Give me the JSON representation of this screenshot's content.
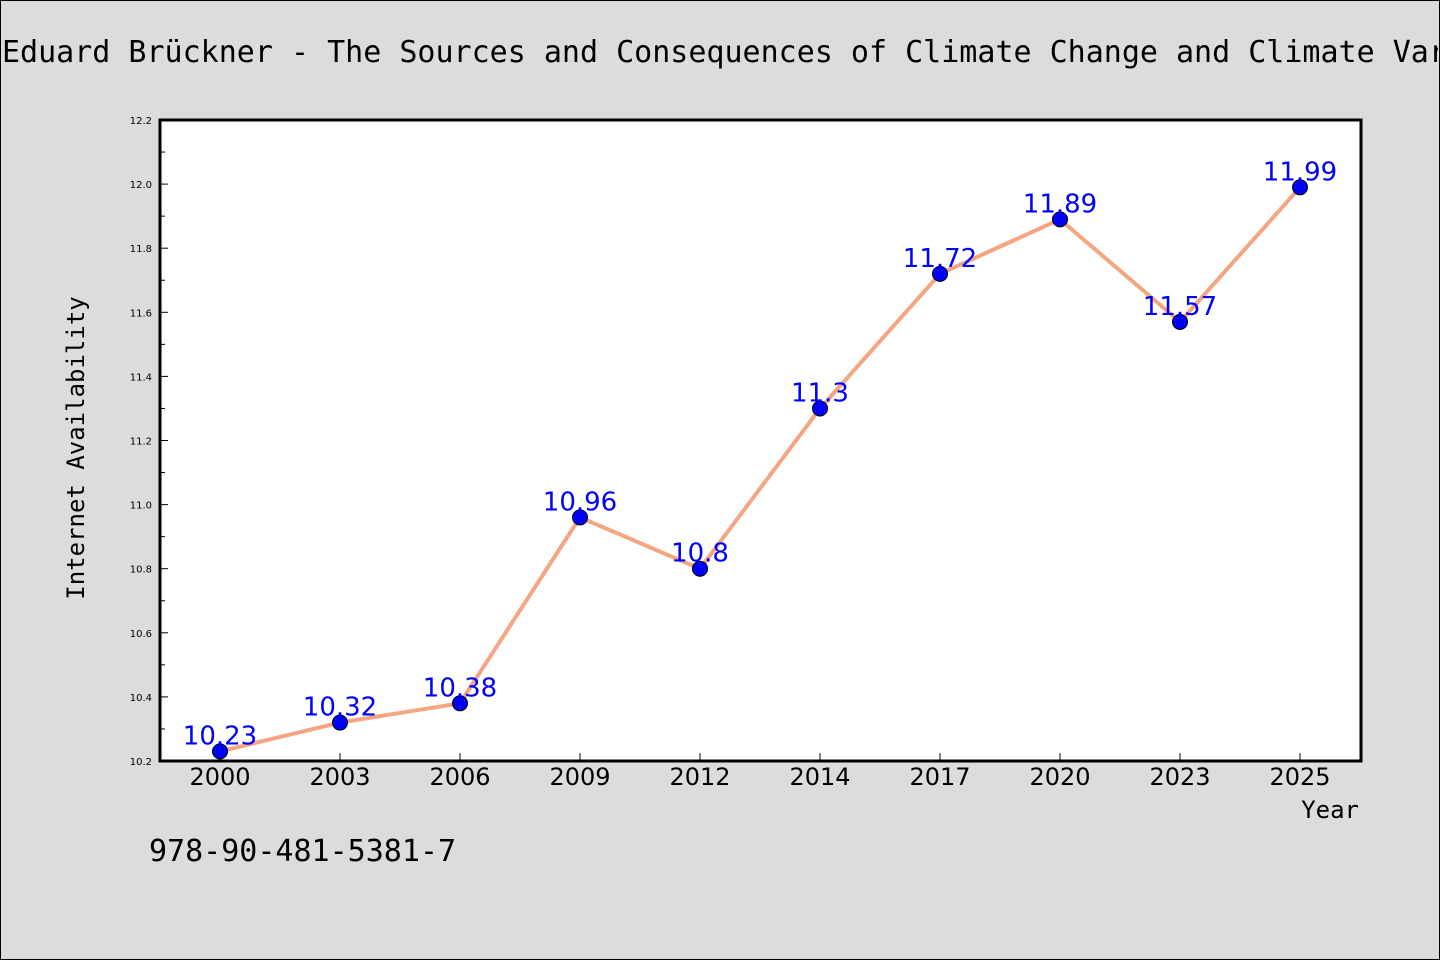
{
  "chart_data": {
    "type": "line",
    "title": "Eduard Brückner - The Sources and Consequences of Climate Change and Climate Variability in Historical Times",
    "xlabel": "Year",
    "ylabel": "Internet Availability",
    "categories": [
      "2000",
      "2003",
      "2006",
      "2009",
      "2012",
      "2014",
      "2017",
      "2020",
      "2023",
      "2025"
    ],
    "values": [
      10.23,
      10.32,
      10.38,
      10.96,
      10.8,
      11.3,
      11.72,
      11.89,
      11.57,
      11.99
    ],
    "data_labels": [
      "10.23",
      "10.32",
      "10.38",
      "10.96",
      "10.8",
      "11.3",
      "11.72",
      "11.89",
      "11.57",
      "11.99"
    ],
    "ylim": [
      10.2,
      12.2
    ],
    "yticks": [
      10.2,
      10.4,
      10.6,
      10.8,
      11.0,
      11.2,
      11.4,
      11.6,
      11.8,
      12.0,
      12.2
    ],
    "ytick_labels": [
      "10.2",
      "10.4",
      "10.6",
      "10.8",
      "11.0",
      "11.2",
      "11.4",
      "11.6",
      "11.8",
      "12.0",
      "12.2"
    ],
    "grid": false,
    "colors": {
      "line": "#f4a582",
      "marker": "#0000ff",
      "data_label": "#0000ff",
      "plot_background": "#ffffff",
      "page_background": "#dcdcdc"
    }
  },
  "footer": {
    "isbn": "978-90-481-5381-7"
  }
}
